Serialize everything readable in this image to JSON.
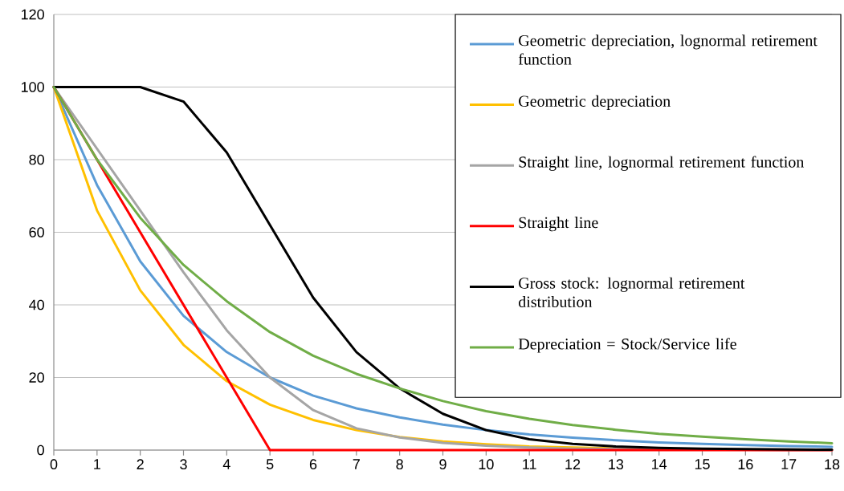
{
  "chart_data": {
    "type": "line",
    "x": [
      0,
      1,
      2,
      3,
      4,
      5,
      6,
      7,
      8,
      9,
      10,
      11,
      12,
      13,
      14,
      15,
      16,
      17,
      18
    ],
    "series": [
      {
        "name": "Geometric depreciation, lognormal retirement function",
        "color": "#5b9bd5",
        "values": [
          100,
          73,
          52,
          37,
          27,
          20,
          15,
          11.5,
          9,
          7,
          5.5,
          4.3,
          3.4,
          2.7,
          2.1,
          1.7,
          1.4,
          1.1,
          0.9
        ]
      },
      {
        "name": "Geometric depreciation",
        "color": "#ffc000",
        "values": [
          100,
          66,
          44,
          29,
          19,
          12.5,
          8.3,
          5.5,
          3.6,
          2.4,
          1.6,
          1,
          0.7,
          0.5,
          0.3,
          null,
          null,
          null,
          null
        ]
      },
      {
        "name": "Straight line, lognormal retirement function",
        "color": "#a5a5a5",
        "values": [
          100,
          83,
          66,
          49,
          33,
          20,
          11,
          6,
          3.5,
          2,
          1.2,
          0.7,
          0.4,
          0.3,
          0.2,
          0.1,
          0.1,
          0,
          0
        ]
      },
      {
        "name": "Straight line",
        "color": "#ff0000",
        "values": [
          100,
          80,
          60,
          40,
          20,
          0,
          0,
          0,
          0,
          0,
          0,
          0,
          0,
          0,
          0,
          0,
          0,
          0,
          0
        ]
      },
      {
        "name": "Gross stock: lognormal retirement distribution",
        "color": "#000000",
        "values": [
          100,
          100,
          100,
          96,
          82,
          62,
          42,
          27,
          17,
          10,
          5.5,
          3,
          1.7,
          1,
          0.6,
          0.4,
          0.3,
          0.2,
          0.1
        ]
      },
      {
        "name": "Depreciation = Stock/Service life",
        "color": "#70ad47",
        "values": [
          100,
          80,
          64,
          51,
          41,
          32.5,
          26,
          21,
          17,
          13.5,
          10.7,
          8.6,
          6.9,
          5.6,
          4.5,
          3.7,
          3,
          2.4,
          1.9
        ]
      }
    ],
    "xlim": [
      0,
      18
    ],
    "xticks": [
      0,
      1,
      2,
      3,
      4,
      5,
      6,
      7,
      8,
      9,
      10,
      11,
      12,
      13,
      14,
      15,
      16,
      17,
      18
    ],
    "ylim": [
      0,
      120
    ],
    "yticks": [
      0,
      20,
      40,
      60,
      80,
      100,
      120
    ],
    "grid": "y",
    "legend": "top right",
    "marker": "none",
    "line_style": "solid"
  }
}
